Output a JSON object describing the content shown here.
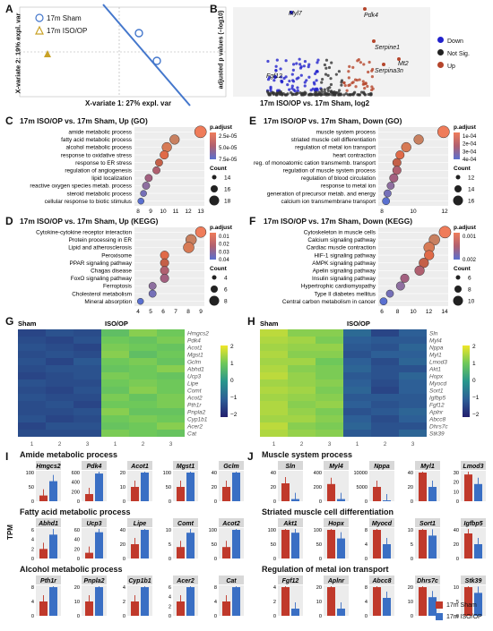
{
  "panels": {
    "A": {
      "letter": "A",
      "xlabel": "X-variate 1: 27% expl. var",
      "ylabel": "X-variate 2: 19% expl. var",
      "legend": [
        "17m Sham",
        "17m ISO/OP"
      ],
      "xticks": [
        "-50",
        "0",
        "50",
        "100"
      ],
      "yticks": [
        "50",
        "0",
        "-50"
      ]
    },
    "B": {
      "letter": "B",
      "xlabel": "17m ISO/OP vs. 17m Sham, log2",
      "ylabel": "adjusted p values (−log10)",
      "xticks": [
        "-5",
        "0",
        "5"
      ],
      "yticks": [
        "0",
        "10",
        "20",
        "30",
        "40",
        "50"
      ],
      "legend": [
        "Down",
        "Not Sig.",
        "Up"
      ],
      "genes": [
        "Myl7",
        "Pdk4",
        "Serpine1",
        "Mt2",
        "Serpina3n",
        "Fgf12"
      ]
    },
    "C": {
      "letter": "C",
      "title": "17m ISO/OP vs. 17m Sham, Up (GO)",
      "xlabel": "% Gene",
      "terms": [
        "amide metabolic process",
        "fatty acid metabolic process",
        "alcohol metabolic process",
        "response to oxidative stress",
        "response to ER stress",
        "regulation of angiogenesis",
        "lipid localization",
        "reactive oxygen species metab. process",
        "steroid metabolic process",
        "cellular response to biotic stimulus"
      ],
      "xticks": [
        "8",
        "9",
        "10",
        "11",
        "12",
        "13"
      ],
      "padj_title": "p.adjust",
      "padj_ticks": [
        "2.5e-05",
        "5.0e-05",
        "7.5e-05"
      ],
      "count_title": "Count",
      "count_ticks": [
        "14",
        "16",
        "18"
      ]
    },
    "D": {
      "letter": "D",
      "title": "17m ISO/OP vs. 17m Sham, Up (KEGG)",
      "xlabel": "% Gene",
      "terms": [
        "Cytokine-cytokine receptor interaction",
        "Protein processing in ER",
        "Lipid and atherosclerosis",
        "Peroxisome",
        "PPAR signaling pathway",
        "Chagas disease",
        "FoxO signaling pathway",
        "Ferroptosis",
        "Cholesterol metabolism",
        "Mineral absorption"
      ],
      "xticks": [
        "4",
        "5",
        "6",
        "7",
        "8",
        "9"
      ],
      "padj_title": "p.adjust",
      "padj_ticks": [
        "0.01",
        "0.02",
        "0.03",
        "0.04"
      ],
      "count_title": "Count",
      "count_ticks": [
        "4",
        "6",
        "8"
      ]
    },
    "E": {
      "letter": "E",
      "title": "17m ISO/OP vs. 17m Sham, Down (GO)",
      "xlabel": "% Gene",
      "terms": [
        "muscle system process",
        "striated muscle cell differentiation",
        "regulation of metal ion transport",
        "heart contraction",
        "reg. of monoatomic cation transmemb. transport",
        "regulation of muscle system process",
        "regulation of blood circulation",
        "response to metal ion",
        "generation of precursor metab. and energy",
        "calcium ion transmembrane transport"
      ],
      "xticks": [
        "8",
        "10",
        "12"
      ],
      "padj_title": "p.adjust",
      "padj_ticks": [
        "1e-04",
        "2e-04",
        "3e-04",
        "4e-04"
      ],
      "count_title": "Count",
      "count_ticks": [
        "12",
        "14",
        "16"
      ]
    },
    "F": {
      "letter": "F",
      "title": "17m ISO/OP vs. 17m Sham, Down (KEGG)",
      "xlabel": "% Gene",
      "terms": [
        "Cytoskeleton in muscle cells",
        "Calcium signaling pathway",
        "Cardiac muscle contraction",
        "HIF-1 signaling pathway",
        "AMPK signaling pathway",
        "Apelin signaling pathway",
        "Insulin signaling pathway",
        "Hypertrophic cardiomyopathy",
        "Type II diabetes mellitus",
        "Central carbon metabolism in cancer"
      ],
      "xticks": [
        "6",
        "8",
        "10",
        "12",
        "14"
      ],
      "padj_title": "p.adjust",
      "padj_ticks": [
        "0.001",
        "0.002"
      ],
      "count_title": "Count",
      "count_ticks": [
        "6",
        "8",
        "10"
      ]
    },
    "G": {
      "letter": "G",
      "group1": "Sham",
      "group2": "ISO/OP",
      "cols": [
        "1",
        "2",
        "3",
        "1",
        "2",
        "3"
      ],
      "genes": [
        "Hmgcs2",
        "Pdk4",
        "Acot1",
        "Mgst1",
        "Gclm",
        "Abhd1",
        "Ucp3",
        "Lipe",
        "Comt",
        "Acot2",
        "Pth1r",
        "Pnpla2",
        "Cyp1b1",
        "Acer2",
        "Cat"
      ],
      "scale": [
        "2",
        "1",
        "0",
        "−1",
        "−2"
      ]
    },
    "H": {
      "letter": "H",
      "group1": "Sham",
      "group2": "ISO/OP",
      "cols": [
        "1",
        "2",
        "3",
        "1",
        "2",
        "3"
      ],
      "genes": [
        "Sln",
        "Myl4",
        "Nppa",
        "Myl1",
        "Lmod3",
        "Akt1",
        "Hopx",
        "Myocd",
        "Sort1",
        "Igfbp5",
        "Fgf12",
        "Aplnr",
        "Abcc8",
        "Dhrs7c",
        "Stk39"
      ],
      "scale": [
        "2",
        "1",
        "0",
        "−1",
        "−2"
      ]
    },
    "I": {
      "letter": "I",
      "ylabel": "TPM",
      "groups": [
        {
          "title": "Amide metabolic process",
          "genes": [
            "Hmgcs2",
            "Pdk4",
            "Acot1",
            "Mgst1",
            "Gclm"
          ]
        },
        {
          "title": "Fatty acid metabolic process",
          "genes": [
            "Abhd1",
            "Ucp3",
            "Lipe",
            "Comt",
            "Acot2"
          ]
        },
        {
          "title": "Alcohol metabolic process",
          "genes": [
            "Pth1r",
            "Pnpla2",
            "Cyp1b1",
            "Acer2",
            "Cat"
          ]
        }
      ]
    },
    "J": {
      "letter": "J",
      "groups": [
        {
          "title": "Muscle system process",
          "genes": [
            "Sln",
            "Myl4",
            "Nppa",
            "Myl1",
            "Lmod3"
          ]
        },
        {
          "title": "Striated muscle cell differentiation",
          "genes": [
            "Akt1",
            "Hopx",
            "Myocd",
            "Sort1",
            "Igfbp5"
          ]
        },
        {
          "title": "Regulation of metal ion transport",
          "genes": [
            "Fgf12",
            "Aplnr",
            "Abcc8",
            "Dhrs7c",
            "Stk39"
          ]
        }
      ],
      "legend": [
        "17m Sham",
        "17m ISO/OP"
      ]
    }
  },
  "colors": {
    "sham": "#c0392b",
    "iso": "#3a6fc4",
    "panelA_line": "#4477cc",
    "up": "#b5452b",
    "down": "#2222cc"
  },
  "chart_data": [
    {
      "type": "bar",
      "panel": "I",
      "categories": [
        "Hmgcs2",
        "Pdk4",
        "Acot1",
        "Mgst1",
        "Gclm",
        "Abhd1",
        "Ucp3",
        "Lipe",
        "Comt",
        "Acot2",
        "Pth1r",
        "Pnpla2",
        "Cyp1b1",
        "Acer2",
        "Cat"
      ],
      "series": [
        {
          "name": "17m Sham",
          "values": [
            20,
            150,
            10,
            50,
            20,
            2,
            12,
            20,
            4,
            40,
            4,
            10,
            2,
            3,
            4
          ]
        },
        {
          "name": "17m ISO/OP",
          "values": [
            70,
            580,
            25,
            100,
            40,
            5,
            55,
            45,
            9,
            110,
            8,
            20,
            4,
            6,
            8
          ]
        }
      ]
    },
    {
      "type": "bar",
      "panel": "J",
      "categories": [
        "Sln",
        "Myl4",
        "Nppa",
        "Myl1",
        "Lmod3",
        "Akt1",
        "Hopx",
        "Myocd",
        "Sort1",
        "Igfbp5",
        "Fgf12",
        "Aplnr",
        "Abcc8",
        "Dhrs7c",
        "Stk39"
      ],
      "series": [
        {
          "name": "17m Sham",
          "values": [
            25,
            240,
            5000,
            40,
            28,
            120,
            110,
            8,
            12,
            35,
            4,
            20,
            8,
            20,
            12
          ]
        },
        {
          "name": "17m ISO/OP",
          "values": [
            3,
            30,
            300,
            20,
            18,
            90,
            70,
            4,
            8,
            20,
            1,
            5,
            5,
            13,
            8
          ]
        }
      ]
    }
  ]
}
